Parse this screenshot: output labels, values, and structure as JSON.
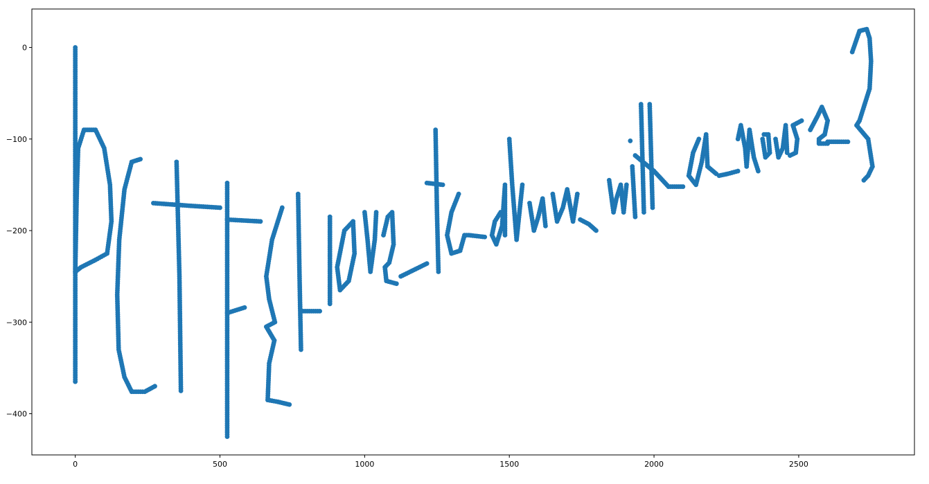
{
  "chart_data": {
    "type": "scatter",
    "title": "",
    "xlabel": "",
    "ylabel": "",
    "xlim": [
      -150,
      2900
    ],
    "ylim": [
      -445,
      42
    ],
    "grid": false,
    "legend": "none",
    "marker_color": "#1f77b4",
    "xticks": [
      0,
      500,
      1000,
      1500,
      2000,
      2500
    ],
    "yticks": [
      0,
      -100,
      -200,
      -300,
      -400
    ],
    "xtick_labels": [
      "0",
      "500",
      "1000",
      "1500",
      "2000",
      "2500"
    ],
    "ytick_labels": [
      "0",
      "−100",
      "−200",
      "−300",
      "−400"
    ],
    "strokes": [
      {
        "name": "P stem",
        "points": [
          [
            0,
            0
          ],
          [
            0,
            -365
          ]
        ]
      },
      {
        "name": "P bowl",
        "points": [
          [
            0,
            -245
          ],
          [
            5,
            -160
          ],
          [
            10,
            -110
          ],
          [
            30,
            -90
          ],
          [
            70,
            -90
          ],
          [
            100,
            -110
          ],
          [
            120,
            -150
          ],
          [
            125,
            -190
          ],
          [
            110,
            -225
          ],
          [
            70,
            -232
          ],
          [
            20,
            -240
          ],
          [
            0,
            -245
          ]
        ]
      },
      {
        "name": "C",
        "points": [
          [
            225,
            -122
          ],
          [
            195,
            -125
          ],
          [
            170,
            -155
          ],
          [
            152,
            -210
          ],
          [
            145,
            -270
          ],
          [
            150,
            -330
          ],
          [
            170,
            -360
          ],
          [
            195,
            -376
          ],
          [
            240,
            -376
          ],
          [
            275,
            -370
          ]
        ]
      },
      {
        "name": "T1 bar",
        "points": [
          [
            270,
            -170
          ],
          [
            400,
            -173
          ],
          [
            500,
            -175
          ]
        ]
      },
      {
        "name": "T1 stem",
        "points": [
          [
            350,
            -125
          ],
          [
            360,
            -250
          ],
          [
            365,
            -375
          ]
        ]
      },
      {
        "name": "F stem",
        "points": [
          [
            525,
            -148
          ],
          [
            525,
            -425
          ]
        ]
      },
      {
        "name": "F bar",
        "points": [
          [
            525,
            -188
          ],
          [
            640,
            -190
          ]
        ]
      },
      {
        "name": "F bar 2",
        "points": [
          [
            525,
            -290
          ],
          [
            585,
            -284
          ]
        ]
      },
      {
        "name": "brace open",
        "points": [
          [
            715,
            -175
          ],
          [
            680,
            -210
          ],
          [
            660,
            -250
          ],
          [
            670,
            -275
          ],
          [
            690,
            -300
          ],
          [
            660,
            -305
          ],
          [
            688,
            -320
          ],
          [
            670,
            -345
          ],
          [
            665,
            -385
          ],
          [
            700,
            -387
          ],
          [
            740,
            -390
          ]
        ]
      },
      {
        "name": "I stem",
        "points": [
          [
            770,
            -160
          ],
          [
            775,
            -250
          ],
          [
            780,
            -330
          ]
        ]
      },
      {
        "name": "I bar",
        "points": [
          [
            780,
            -288
          ],
          [
            845,
            -288
          ]
        ]
      },
      {
        "name": "l",
        "points": [
          [
            880,
            -185
          ],
          [
            880,
            -280
          ]
        ]
      },
      {
        "name": "o",
        "points": [
          [
            960,
            -190
          ],
          [
            930,
            -200
          ],
          [
            905,
            -240
          ],
          [
            915,
            -265
          ],
          [
            945,
            -255
          ],
          [
            965,
            -225
          ],
          [
            960,
            -190
          ]
        ]
      },
      {
        "name": "v",
        "points": [
          [
            1000,
            -180
          ],
          [
            1010,
            -210
          ],
          [
            1020,
            -245
          ],
          [
            1035,
            -210
          ],
          [
            1040,
            -180
          ]
        ]
      },
      {
        "name": "e",
        "points": [
          [
            1065,
            -205
          ],
          [
            1080,
            -185
          ],
          [
            1095,
            -180
          ],
          [
            1100,
            -215
          ],
          [
            1085,
            -235
          ],
          [
            1070,
            -240
          ],
          [
            1075,
            -255
          ],
          [
            1110,
            -258
          ]
        ]
      },
      {
        "name": "underscore 1",
        "points": [
          [
            1125,
            -250
          ],
          [
            1170,
            -243
          ],
          [
            1215,
            -236
          ]
        ]
      },
      {
        "name": "t stem",
        "points": [
          [
            1245,
            -90
          ],
          [
            1250,
            -180
          ],
          [
            1255,
            -245
          ]
        ]
      },
      {
        "name": "t bar",
        "points": [
          [
            1215,
            -148
          ],
          [
            1270,
            -150
          ]
        ]
      },
      {
        "name": "o2",
        "points": [
          [
            1325,
            -160
          ],
          [
            1300,
            -180
          ],
          [
            1285,
            -205
          ],
          [
            1300,
            -225
          ],
          [
            1330,
            -222
          ],
          [
            1345,
            -205
          ],
          [
            1360,
            -205
          ],
          [
            1415,
            -207
          ]
        ]
      },
      {
        "name": "d",
        "points": [
          [
            1470,
            -180
          ],
          [
            1450,
            -190
          ],
          [
            1440,
            -205
          ],
          [
            1455,
            -215
          ],
          [
            1475,
            -195
          ],
          [
            1485,
            -150
          ],
          [
            1485,
            -205
          ]
        ]
      },
      {
        "name": "r",
        "points": [
          [
            1500,
            -100
          ],
          [
            1510,
            -150
          ],
          [
            1525,
            -210
          ],
          [
            1530,
            -195
          ],
          [
            1545,
            -150
          ]
        ]
      },
      {
        "name": "a",
        "points": [
          [
            1570,
            -170
          ],
          [
            1585,
            -200
          ],
          [
            1600,
            -185
          ],
          [
            1615,
            -165
          ],
          [
            1625,
            -195
          ]
        ]
      },
      {
        "name": "w",
        "points": [
          [
            1650,
            -160
          ],
          [
            1665,
            -190
          ],
          [
            1685,
            -175
          ],
          [
            1700,
            -155
          ],
          [
            1720,
            -190
          ],
          [
            1735,
            -160
          ]
        ]
      },
      {
        "name": "underscore 2",
        "points": [
          [
            1745,
            -188
          ],
          [
            1775,
            -193
          ],
          [
            1800,
            -200
          ]
        ]
      },
      {
        "name": "w2",
        "points": [
          [
            1845,
            -145
          ],
          [
            1860,
            -180
          ],
          [
            1870,
            -165
          ],
          [
            1885,
            -150
          ],
          [
            1895,
            -180
          ],
          [
            1905,
            -150
          ]
        ]
      },
      {
        "name": "i",
        "points": [
          [
            1925,
            -130
          ],
          [
            1935,
            -185
          ]
        ]
      },
      {
        "name": "i dot",
        "points": [
          [
            1918,
            -102
          ]
        ]
      },
      {
        "name": "t2 stem",
        "points": [
          [
            1955,
            -62
          ],
          [
            1965,
            -180
          ]
        ]
      },
      {
        "name": "h stem",
        "points": [
          [
            1985,
            -62
          ],
          [
            1995,
            -175
          ]
        ]
      },
      {
        "name": "h bar",
        "points": [
          [
            1935,
            -118
          ],
          [
            2000,
            -135
          ],
          [
            2050,
            -152
          ],
          [
            2100,
            -152
          ]
        ]
      },
      {
        "name": "a2",
        "points": [
          [
            2155,
            -100
          ],
          [
            2135,
            -115
          ],
          [
            2120,
            -140
          ],
          [
            2145,
            -150
          ],
          [
            2165,
            -125
          ],
          [
            2180,
            -95
          ],
          [
            2185,
            -130
          ],
          [
            2215,
            -138
          ]
        ]
      },
      {
        "name": "underscore 3",
        "points": [
          [
            2225,
            -140
          ],
          [
            2255,
            -138
          ],
          [
            2290,
            -135
          ]
        ]
      },
      {
        "name": "m",
        "points": [
          [
            2290,
            -100
          ],
          [
            2300,
            -85
          ],
          [
            2315,
            -110
          ],
          [
            2320,
            -130
          ],
          [
            2330,
            -90
          ],
          [
            2345,
            -120
          ],
          [
            2360,
            -135
          ]
        ]
      },
      {
        "name": "o3",
        "points": [
          [
            2375,
            -100
          ],
          [
            2385,
            -120
          ],
          [
            2400,
            -115
          ],
          [
            2395,
            -95
          ],
          [
            2380,
            -95
          ]
        ]
      },
      {
        "name": "u",
        "points": [
          [
            2420,
            -100
          ],
          [
            2430,
            -120
          ],
          [
            2445,
            -110
          ],
          [
            2455,
            -85
          ],
          [
            2460,
            -115
          ]
        ]
      },
      {
        "name": "s",
        "points": [
          [
            2510,
            -80
          ],
          [
            2480,
            -85
          ],
          [
            2495,
            -100
          ],
          [
            2490,
            -115
          ],
          [
            2470,
            -118
          ]
        ]
      },
      {
        "name": "e2",
        "points": [
          [
            2540,
            -90
          ],
          [
            2565,
            -75
          ],
          [
            2580,
            -65
          ],
          [
            2600,
            -80
          ],
          [
            2590,
            -95
          ],
          [
            2570,
            -100
          ],
          [
            2570,
            -105
          ],
          [
            2600,
            -105
          ]
        ]
      },
      {
        "name": "e2 tail",
        "points": [
          [
            2600,
            -103
          ],
          [
            2640,
            -103
          ],
          [
            2670,
            -103
          ]
        ]
      },
      {
        "name": "brace close",
        "points": [
          [
            2685,
            -5
          ],
          [
            2710,
            18
          ],
          [
            2735,
            20
          ],
          [
            2745,
            10
          ],
          [
            2750,
            -15
          ],
          [
            2745,
            -45
          ],
          [
            2710,
            -80
          ],
          [
            2700,
            -85
          ],
          [
            2740,
            -100
          ],
          [
            2755,
            -130
          ],
          [
            2740,
            -140
          ],
          [
            2725,
            -145
          ]
        ]
      }
    ]
  }
}
